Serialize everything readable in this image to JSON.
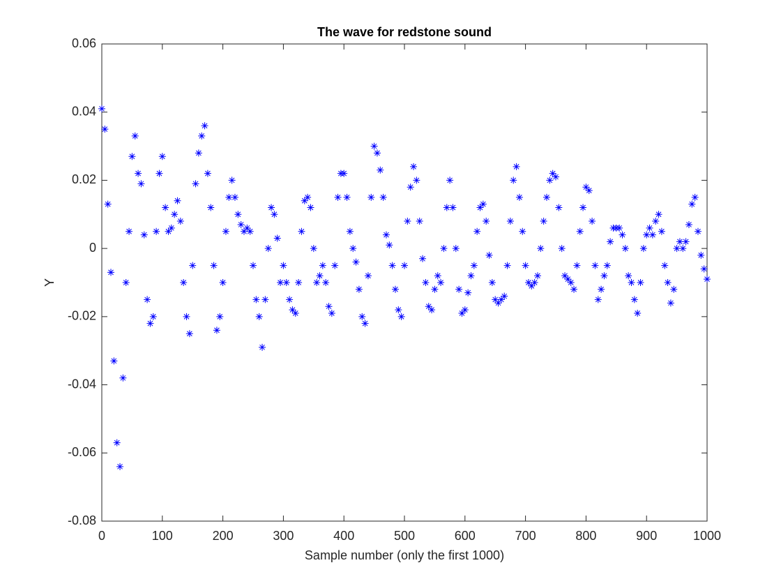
{
  "chart_data": {
    "type": "scatter",
    "title": "The wave for redstone sound",
    "x_label": "Sample number (only the first 1000)",
    "y_label": "Y",
    "color": "#0000ff",
    "marker": "*",
    "x": [
      0,
      5,
      10,
      15,
      20,
      25,
      30,
      35,
      40,
      45,
      50,
      55,
      60,
      65,
      70,
      75,
      80,
      85,
      90,
      95,
      100,
      105,
      110,
      115,
      120,
      125,
      130,
      135,
      140,
      145,
      150,
      155,
      160,
      165,
      170,
      175,
      180,
      185,
      190,
      195,
      200,
      205,
      210,
      215,
      220,
      225,
      230,
      235,
      240,
      245,
      250,
      255,
      260,
      265,
      270,
      275,
      280,
      285,
      290,
      295,
      300,
      305,
      310,
      315,
      320,
      325,
      330,
      335,
      340,
      345,
      350,
      355,
      360,
      365,
      370,
      375,
      380,
      385,
      390,
      395,
      400,
      405,
      410,
      415,
      420,
      425,
      430,
      435,
      440,
      445,
      450,
      455,
      460,
      465,
      470,
      475,
      480,
      485,
      490,
      495,
      500,
      505,
      510,
      515,
      520,
      525,
      530,
      535,
      540,
      545,
      550,
      555,
      560,
      565,
      570,
      575,
      580,
      585,
      590,
      595,
      600,
      605,
      610,
      615,
      620,
      625,
      630,
      635,
      640,
      645,
      650,
      655,
      660,
      665,
      670,
      675,
      680,
      685,
      690,
      695,
      700,
      705,
      710,
      715,
      720,
      725,
      730,
      735,
      740,
      745,
      750,
      755,
      760,
      765,
      770,
      775,
      780,
      785,
      790,
      795,
      800,
      805,
      810,
      815,
      820,
      825,
      830,
      835,
      840,
      845,
      850,
      855,
      860,
      865,
      870,
      875,
      880,
      885,
      890,
      895,
      900,
      905,
      910,
      915,
      920,
      925,
      930,
      935,
      940,
      945,
      950,
      955,
      960,
      965,
      970,
      975,
      980,
      985,
      990,
      995,
      1000
    ],
    "values": [
      0.041,
      0.035,
      0.013,
      -0.007,
      -0.033,
      -0.057,
      -0.064,
      -0.038,
      -0.01,
      0.005,
      0.027,
      0.033,
      0.022,
      0.019,
      0.004,
      -0.015,
      -0.022,
      -0.02,
      0.005,
      0.022,
      0.027,
      0.012,
      0.005,
      0.006,
      0.01,
      0.014,
      0.008,
      -0.01,
      -0.02,
      -0.025,
      -0.005,
      0.019,
      0.028,
      0.033,
      0.036,
      0.022,
      0.012,
      -0.005,
      -0.024,
      -0.02,
      -0.01,
      0.005,
      0.015,
      0.02,
      0.015,
      0.01,
      0.007,
      0.005,
      0.006,
      0.005,
      -0.005,
      -0.015,
      -0.02,
      -0.029,
      -0.015,
      0.0,
      0.012,
      0.01,
      0.003,
      -0.01,
      -0.005,
      -0.01,
      -0.015,
      -0.018,
      -0.019,
      -0.01,
      0.005,
      0.014,
      0.015,
      0.012,
      0.0,
      -0.01,
      -0.008,
      -0.005,
      -0.01,
      -0.017,
      -0.019,
      -0.005,
      0.015,
      0.022,
      0.022,
      0.015,
      0.005,
      0.0,
      -0.004,
      -0.012,
      -0.02,
      -0.022,
      -0.008,
      0.015,
      0.03,
      0.028,
      0.023,
      0.015,
      0.004,
      0.001,
      -0.005,
      -0.012,
      -0.018,
      -0.02,
      -0.005,
      0.008,
      0.018,
      0.024,
      0.02,
      0.008,
      -0.003,
      -0.01,
      -0.017,
      -0.018,
      -0.012,
      -0.008,
      -0.01,
      0.0,
      0.012,
      0.02,
      0.012,
      0.0,
      -0.012,
      -0.019,
      -0.018,
      -0.013,
      -0.008,
      -0.005,
      0.005,
      0.012,
      0.013,
      0.008,
      -0.002,
      -0.01,
      -0.015,
      -0.016,
      -0.015,
      -0.014,
      -0.005,
      0.008,
      0.02,
      0.024,
      0.015,
      0.005,
      -0.005,
      -0.01,
      -0.011,
      -0.01,
      -0.008,
      0.0,
      0.008,
      0.015,
      0.02,
      0.022,
      0.021,
      0.012,
      0.0,
      -0.008,
      -0.009,
      -0.01,
      -0.012,
      -0.005,
      0.005,
      0.012,
      0.018,
      0.017,
      0.008,
      -0.005,
      -0.015,
      -0.012,
      -0.008,
      -0.005,
      0.002,
      0.006,
      0.006,
      0.006,
      0.004,
      0.0,
      -0.008,
      -0.01,
      -0.015,
      -0.019,
      -0.01,
      0.0,
      0.004,
      0.006,
      0.004,
      0.008,
      0.01,
      0.005,
      -0.005,
      -0.01,
      -0.016,
      -0.012,
      0.0,
      0.002,
      0.0,
      0.002,
      0.007,
      0.013,
      0.015,
      0.005,
      -0.002,
      -0.006,
      -0.009
    ],
    "xlim": [
      0,
      1000
    ],
    "xticks": [
      0,
      100,
      200,
      300,
      400,
      500,
      600,
      700,
      800,
      900,
      1000
    ],
    "ylim": [
      -0.08,
      0.06
    ],
    "yticks": [
      -0.08,
      -0.06,
      -0.04,
      -0.02,
      0,
      0.02,
      0.04,
      0.06
    ]
  }
}
